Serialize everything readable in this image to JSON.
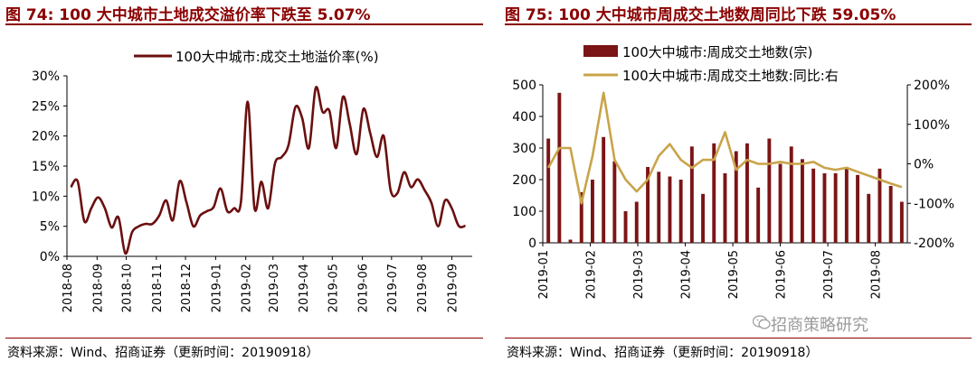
{
  "left": {
    "title": "图 74:  100 大中城市土地成交溢价率下跌至 5.07%",
    "source": "资料来源：Wind、招商证券（更新时间：20190918）"
  },
  "right": {
    "title": "图 75:  100 大中城市周成交土地数周同比下跌 59.05%",
    "source": "资料来源：Wind、招商证券（更新时间：20190918）"
  },
  "watermark": "招商策略研究",
  "icon": "wechat-icon",
  "colors": {
    "title": "#8b0000",
    "line": "#6b0f0f",
    "bar": "#7b1416",
    "yoy": "#c9a44a"
  },
  "chart_data": [
    {
      "type": "line",
      "legend": "100大中城市:成交土地溢价率(%)",
      "legend_position": "top",
      "grid": false,
      "ylim": [
        0,
        30
      ],
      "yticks": [
        "0%",
        "5%",
        "10%",
        "15%",
        "20%",
        "25%",
        "30%"
      ],
      "xticks": [
        "2018-08",
        "2018-09",
        "2018-10",
        "2018-11",
        "2018-12",
        "2019-01",
        "2019-02",
        "2019-03",
        "2019-04",
        "2019-05",
        "2019-06",
        "2019-07",
        "2019-08",
        "2019-09"
      ],
      "x": [
        "2018-08-05",
        "2018-08-12",
        "2018-08-19",
        "2018-08-26",
        "2018-09-02",
        "2018-09-09",
        "2018-09-16",
        "2018-09-23",
        "2018-09-30",
        "2018-10-07",
        "2018-10-14",
        "2018-10-21",
        "2018-10-28",
        "2018-11-04",
        "2018-11-11",
        "2018-11-18",
        "2018-11-25",
        "2018-12-02",
        "2018-12-09",
        "2018-12-16",
        "2018-12-23",
        "2018-12-30",
        "2019-01-06",
        "2019-01-13",
        "2019-01-20",
        "2019-01-27",
        "2019-02-03",
        "2019-02-10",
        "2019-02-17",
        "2019-02-24",
        "2019-03-03",
        "2019-03-10",
        "2019-03-17",
        "2019-03-24",
        "2019-03-31",
        "2019-04-07",
        "2019-04-14",
        "2019-04-21",
        "2019-04-28",
        "2019-05-05",
        "2019-05-12",
        "2019-05-19",
        "2019-05-26",
        "2019-06-02",
        "2019-06-09",
        "2019-06-16",
        "2019-06-23",
        "2019-06-30",
        "2019-07-07",
        "2019-07-14",
        "2019-07-21",
        "2019-07-28",
        "2019-08-04",
        "2019-08-11",
        "2019-08-18",
        "2019-08-25",
        "2019-09-01",
        "2019-09-08",
        "2019-09-15"
      ],
      "values": [
        11.5,
        12.5,
        5.8,
        8.0,
        9.8,
        8.0,
        4.8,
        6.5,
        0.5,
        4.0,
        5.0,
        5.4,
        5.4,
        6.8,
        9.3,
        6.0,
        12.5,
        9.0,
        5.0,
        6.8,
        7.5,
        8.2,
        11.3,
        7.5,
        8.0,
        9.0,
        25.7,
        8.0,
        12.4,
        8.0,
        15.4,
        16.5,
        18.5,
        24.8,
        23.0,
        18.0,
        28.0,
        24.0,
        24.2,
        18.0,
        26.5,
        22.0,
        17.0,
        24.5,
        20.5,
        16.5,
        20.0,
        11.0,
        10.5,
        14.0,
        11.5,
        12.8,
        11.0,
        8.9,
        5.0,
        9.3,
        8.0,
        5.07,
        5.07
      ]
    },
    {
      "type": "bar",
      "series": [
        {
          "name": "100大中城市:周成交土地数(宗)",
          "type": "bar",
          "axis": "left",
          "values": [
            330,
            475,
            10,
            160,
            200,
            335,
            258,
            100,
            130,
            240,
            225,
            210,
            200,
            305,
            155,
            315,
            220,
            290,
            315,
            175,
            330,
            250,
            305,
            265,
            235,
            220,
            220,
            240,
            215,
            155,
            235,
            180,
            130
          ]
        },
        {
          "name": "100大中城市:周成交土地数:同比:右",
          "type": "line",
          "axis": "right",
          "values": [
            -10,
            40,
            40,
            -100,
            20,
            180,
            10,
            -40,
            -70,
            -40,
            20,
            50,
            10,
            -10,
            10,
            10,
            80,
            -15,
            10,
            0,
            0,
            5,
            0,
            0,
            5,
            -10,
            -15,
            -10,
            -20,
            -30,
            -40,
            -50,
            -59.05
          ]
        }
      ],
      "legend_position": "top",
      "grid": false,
      "ylim": [
        0,
        500
      ],
      "yticks": [
        "0",
        "100",
        "200",
        "300",
        "400",
        "500"
      ],
      "y2lim": [
        -200,
        200
      ],
      "y2ticks": [
        "-200%",
        "-100%",
        "0%",
        "100%",
        "200%"
      ],
      "xticks": [
        "2019-01",
        "2019-02",
        "2019-03",
        "2019-04",
        "2019-05",
        "2019-06",
        "2019-07",
        "2019-08"
      ]
    }
  ]
}
